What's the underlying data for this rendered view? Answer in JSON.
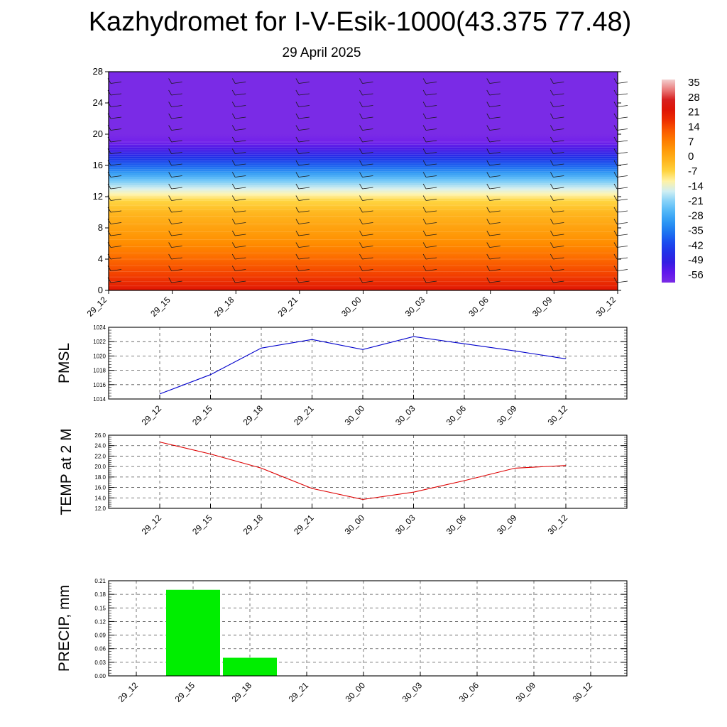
{
  "title": "Kazhydromet for I-V-Esik-1000(43.375 77.48)",
  "subtitle": "29 April 2025",
  "colors": {
    "pmsl_line": "#0000cc",
    "temp_line": "#dd0000",
    "precip_bar": "#00ee00"
  },
  "chart_data": [
    {
      "type": "heatmap",
      "title": "",
      "xlabel": "",
      "ylabel": "",
      "x_ticks": [
        "29_12",
        "29_15",
        "29_18",
        "29_21",
        "30_00",
        "30_03",
        "30_06",
        "30_09",
        "30_12"
      ],
      "y_ticks": [
        0,
        4,
        8,
        12,
        16,
        20,
        24,
        28
      ],
      "ylim": [
        0,
        28
      ],
      "colorbar_labels": [
        "35",
        "28",
        "21",
        "14",
        "7",
        "0",
        "-7",
        "-14",
        "-21",
        "-28",
        "-35",
        "-42",
        "-49",
        "-56"
      ],
      "colorbar_range": [
        -60,
        39
      ],
      "temperature_profile": [
        [
          0,
          24
        ],
        [
          2,
          17
        ],
        [
          4,
          12
        ],
        [
          6,
          7
        ],
        [
          8,
          3
        ],
        [
          10,
          -1
        ],
        [
          11.5,
          -6
        ],
        [
          12.3,
          -11
        ],
        [
          13,
          -15
        ],
        [
          14,
          -22
        ],
        [
          15,
          -30
        ],
        [
          16,
          -38
        ],
        [
          17,
          -45
        ],
        [
          18,
          -52
        ],
        [
          19,
          -58
        ],
        [
          20,
          -60
        ],
        [
          28,
          -60
        ]
      ]
    },
    {
      "type": "line",
      "ylabel": "PMSL",
      "x": [
        "29_12",
        "29_15",
        "29_18",
        "29_21",
        "30_00",
        "30_03",
        "30_06",
        "30_09",
        "30_12"
      ],
      "y_ticks": [
        "1014",
        "1016",
        "1018",
        "1020",
        "1022",
        "1024"
      ],
      "ylim": [
        1014,
        1024
      ],
      "series": [
        {
          "values": [
            1014.7,
            1017.4,
            1021.1,
            1022.3,
            1020.9,
            1022.7,
            1021.7,
            1020.7,
            1019.6
          ]
        }
      ],
      "grid": true
    },
    {
      "type": "line",
      "ylabel": "TEMP at 2 M",
      "x": [
        "29_12",
        "29_15",
        "29_18",
        "29_21",
        "30_00",
        "30_03",
        "30_06",
        "30_09",
        "30_12"
      ],
      "y_ticks": [
        "12.0",
        "14.0",
        "16.0",
        "18.0",
        "20.0",
        "22.0",
        "24.0",
        "26.0"
      ],
      "ylim": [
        12,
        26
      ],
      "series": [
        {
          "values": [
            24.7,
            22.4,
            19.7,
            15.8,
            13.7,
            15.1,
            17.3,
            19.7,
            20.2
          ]
        }
      ],
      "grid": true
    },
    {
      "type": "bar",
      "ylabel": "PRECIP, mm",
      "categories": [
        "29_12",
        "29_15",
        "29_18",
        "29_21",
        "30_00",
        "30_03",
        "30_06",
        "30_09",
        "30_12"
      ],
      "values": [
        0,
        0.19,
        0.04,
        0,
        0,
        0,
        0,
        0,
        0
      ],
      "y_ticks": [
        "0.00",
        "0.03",
        "0.06",
        "0.09",
        "0.12",
        "0.15",
        "0.18",
        "0.21"
      ],
      "ylim": [
        0,
        0.21
      ],
      "grid": true
    }
  ]
}
